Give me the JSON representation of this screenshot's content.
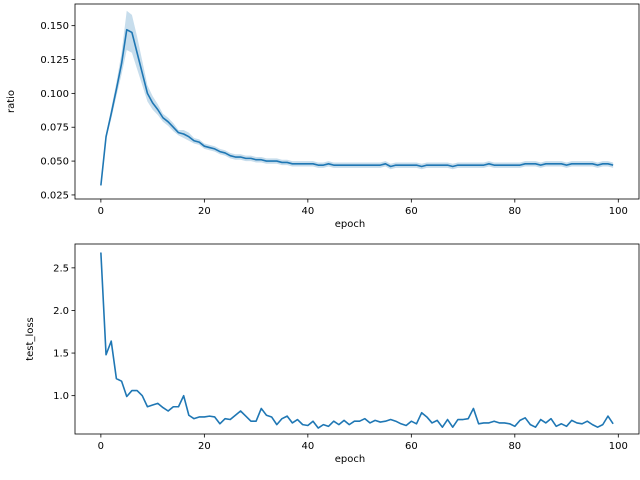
{
  "chart_data": [
    {
      "type": "line",
      "title": "",
      "xlabel": "epoch",
      "ylabel": "ratio",
      "xlim": [
        -5,
        104
      ],
      "ylim": [
        0.022,
        0.166
      ],
      "xticks": [
        0,
        20,
        40,
        60,
        80,
        100
      ],
      "yticks": [
        0.025,
        0.05,
        0.075,
        0.1,
        0.125,
        0.15
      ],
      "ytick_labels": [
        "0.025",
        "0.050",
        "0.075",
        "0.100",
        "0.125",
        "0.150"
      ],
      "grid": false,
      "color": "#1f77b4",
      "band_color": "#1f77b4",
      "band_opacity": 0.25,
      "series": [
        {
          "x": [
            0,
            1,
            2,
            3,
            4,
            5,
            6,
            7,
            8,
            9,
            10,
            11,
            12,
            13,
            14,
            15,
            16,
            17,
            18,
            19,
            20,
            21,
            22,
            23,
            24,
            25,
            26,
            27,
            28,
            29,
            30,
            31,
            32,
            33,
            34,
            35,
            36,
            37,
            38,
            39,
            40,
            41,
            42,
            43,
            44,
            45,
            46,
            47,
            48,
            49,
            50,
            51,
            52,
            53,
            54,
            55,
            56,
            57,
            58,
            59,
            60,
            61,
            62,
            63,
            64,
            65,
            66,
            67,
            68,
            69,
            70,
            71,
            72,
            73,
            74,
            75,
            76,
            77,
            78,
            79,
            80,
            81,
            82,
            83,
            84,
            85,
            86,
            87,
            88,
            89,
            90,
            91,
            92,
            93,
            94,
            95,
            96,
            97,
            98,
            99
          ],
          "y": [
            0.032,
            0.068,
            0.085,
            0.103,
            0.122,
            0.147,
            0.145,
            0.13,
            0.115,
            0.1,
            0.093,
            0.088,
            0.082,
            0.079,
            0.075,
            0.071,
            0.07,
            0.068,
            0.065,
            0.064,
            0.061,
            0.06,
            0.059,
            0.057,
            0.056,
            0.054,
            0.053,
            0.053,
            0.052,
            0.052,
            0.051,
            0.051,
            0.05,
            0.05,
            0.05,
            0.049,
            0.049,
            0.048,
            0.048,
            0.048,
            0.048,
            0.048,
            0.047,
            0.047,
            0.048,
            0.047,
            0.047,
            0.047,
            0.047,
            0.047,
            0.047,
            0.047,
            0.047,
            0.047,
            0.047,
            0.048,
            0.046,
            0.047,
            0.047,
            0.047,
            0.047,
            0.047,
            0.046,
            0.047,
            0.047,
            0.047,
            0.047,
            0.047,
            0.046,
            0.047,
            0.047,
            0.047,
            0.047,
            0.047,
            0.047,
            0.048,
            0.047,
            0.047,
            0.047,
            0.047,
            0.047,
            0.047,
            0.048,
            0.048,
            0.048,
            0.047,
            0.048,
            0.048,
            0.048,
            0.048,
            0.047,
            0.048,
            0.048,
            0.048,
            0.048,
            0.048,
            0.047,
            0.048,
            0.048,
            0.047
          ],
          "lower": [
            0.031,
            0.066,
            0.081,
            0.098,
            0.114,
            0.132,
            0.13,
            0.118,
            0.106,
            0.094,
            0.088,
            0.084,
            0.079,
            0.076,
            0.072,
            0.069,
            0.067,
            0.065,
            0.063,
            0.062,
            0.059,
            0.058,
            0.057,
            0.055,
            0.054,
            0.052,
            0.051,
            0.051,
            0.05,
            0.05,
            0.049,
            0.049,
            0.048,
            0.048,
            0.048,
            0.047,
            0.047,
            0.046,
            0.046,
            0.046,
            0.046,
            0.046,
            0.045,
            0.045,
            0.046,
            0.045,
            0.045,
            0.045,
            0.045,
            0.045,
            0.045,
            0.045,
            0.045,
            0.045,
            0.045,
            0.046,
            0.044,
            0.045,
            0.045,
            0.045,
            0.045,
            0.045,
            0.044,
            0.045,
            0.045,
            0.045,
            0.045,
            0.045,
            0.044,
            0.045,
            0.045,
            0.045,
            0.045,
            0.045,
            0.045,
            0.046,
            0.045,
            0.045,
            0.045,
            0.045,
            0.045,
            0.045,
            0.046,
            0.046,
            0.046,
            0.045,
            0.046,
            0.046,
            0.046,
            0.046,
            0.045,
            0.046,
            0.046,
            0.046,
            0.046,
            0.046,
            0.045,
            0.046,
            0.046,
            0.045
          ],
          "upper": [
            0.033,
            0.07,
            0.089,
            0.108,
            0.13,
            0.161,
            0.158,
            0.142,
            0.124,
            0.106,
            0.098,
            0.092,
            0.085,
            0.082,
            0.078,
            0.073,
            0.073,
            0.071,
            0.067,
            0.066,
            0.063,
            0.062,
            0.061,
            0.059,
            0.058,
            0.056,
            0.055,
            0.055,
            0.054,
            0.054,
            0.053,
            0.053,
            0.052,
            0.052,
            0.052,
            0.051,
            0.051,
            0.05,
            0.05,
            0.05,
            0.05,
            0.05,
            0.049,
            0.049,
            0.05,
            0.049,
            0.049,
            0.049,
            0.049,
            0.049,
            0.049,
            0.049,
            0.049,
            0.049,
            0.049,
            0.05,
            0.048,
            0.049,
            0.049,
            0.049,
            0.049,
            0.049,
            0.048,
            0.049,
            0.049,
            0.049,
            0.049,
            0.049,
            0.048,
            0.049,
            0.049,
            0.049,
            0.049,
            0.049,
            0.049,
            0.05,
            0.049,
            0.049,
            0.049,
            0.049,
            0.049,
            0.049,
            0.05,
            0.05,
            0.05,
            0.049,
            0.05,
            0.05,
            0.05,
            0.05,
            0.049,
            0.05,
            0.05,
            0.05,
            0.05,
            0.05,
            0.049,
            0.05,
            0.05,
            0.049
          ]
        }
      ]
    },
    {
      "type": "line",
      "title": "",
      "xlabel": "epoch",
      "ylabel": "test_loss",
      "xlim": [
        -5,
        104
      ],
      "ylim": [
        0.55,
        2.78
      ],
      "xticks": [
        0,
        20,
        40,
        60,
        80,
        100
      ],
      "yticks": [
        1.0,
        1.5,
        2.0,
        2.5
      ],
      "ytick_labels": [
        "1.0",
        "1.5",
        "2.0",
        "2.5"
      ],
      "grid": false,
      "color": "#1f77b4",
      "series": [
        {
          "x": [
            0,
            1,
            2,
            3,
            4,
            5,
            6,
            7,
            8,
            9,
            10,
            11,
            12,
            13,
            14,
            15,
            16,
            17,
            18,
            19,
            20,
            21,
            22,
            23,
            24,
            25,
            26,
            27,
            28,
            29,
            30,
            31,
            32,
            33,
            34,
            35,
            36,
            37,
            38,
            39,
            40,
            41,
            42,
            43,
            44,
            45,
            46,
            47,
            48,
            49,
            50,
            51,
            52,
            53,
            54,
            55,
            56,
            57,
            58,
            59,
            60,
            61,
            62,
            63,
            64,
            65,
            66,
            67,
            68,
            69,
            70,
            71,
            72,
            73,
            74,
            75,
            76,
            77,
            78,
            79,
            80,
            81,
            82,
            83,
            84,
            85,
            86,
            87,
            88,
            89,
            90,
            91,
            92,
            93,
            94,
            95,
            96,
            97,
            98,
            99
          ],
          "y": [
            2.68,
            1.48,
            1.64,
            1.2,
            1.17,
            0.99,
            1.06,
            1.06,
            1.0,
            0.87,
            0.89,
            0.91,
            0.86,
            0.82,
            0.87,
            0.87,
            1.0,
            0.77,
            0.73,
            0.75,
            0.75,
            0.76,
            0.75,
            0.67,
            0.73,
            0.72,
            0.77,
            0.82,
            0.76,
            0.7,
            0.7,
            0.85,
            0.77,
            0.75,
            0.66,
            0.73,
            0.76,
            0.68,
            0.72,
            0.66,
            0.65,
            0.7,
            0.62,
            0.66,
            0.64,
            0.7,
            0.66,
            0.71,
            0.66,
            0.7,
            0.7,
            0.73,
            0.68,
            0.71,
            0.69,
            0.7,
            0.72,
            0.7,
            0.67,
            0.65,
            0.7,
            0.67,
            0.8,
            0.75,
            0.68,
            0.71,
            0.63,
            0.72,
            0.63,
            0.72,
            0.72,
            0.73,
            0.85,
            0.67,
            0.68,
            0.68,
            0.7,
            0.68,
            0.68,
            0.67,
            0.64,
            0.71,
            0.74,
            0.66,
            0.63,
            0.72,
            0.68,
            0.73,
            0.64,
            0.67,
            0.64,
            0.71,
            0.68,
            0.67,
            0.7,
            0.66,
            0.63,
            0.66,
            0.76,
            0.67
          ]
        }
      ]
    }
  ]
}
